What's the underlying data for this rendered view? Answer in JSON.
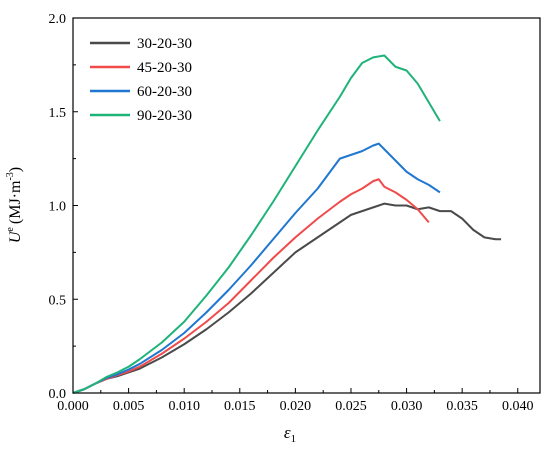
{
  "chart_data": {
    "type": "line",
    "xlabel": "ε",
    "xlabel_sub": "1",
    "ylabel": "U",
    "ylabel_sup": "e",
    "ylabel_unit": "(MJ·m",
    "ylabel_unit_sup": "-3",
    "ylabel_unit_end": ")",
    "xlim": [
      0.0,
      0.042
    ],
    "ylim": [
      0.0,
      2.0
    ],
    "xticks": [
      "0.000",
      "0.005",
      "0.010",
      "0.015",
      "0.020",
      "0.025",
      "0.030",
      "0.035",
      "0.040"
    ],
    "yticks": [
      "0.0",
      "0.5",
      "1.0",
      "1.5",
      "2.0"
    ],
    "legend_position": "top-left",
    "series": [
      {
        "name": "30-20-30",
        "color": "#4a4a4a",
        "points": [
          [
            0.0,
            0.0
          ],
          [
            0.001,
            0.02
          ],
          [
            0.002,
            0.05
          ],
          [
            0.003,
            0.075
          ],
          [
            0.004,
            0.09
          ],
          [
            0.005,
            0.11
          ],
          [
            0.006,
            0.13
          ],
          [
            0.008,
            0.19
          ],
          [
            0.01,
            0.26
          ],
          [
            0.012,
            0.34
          ],
          [
            0.014,
            0.43
          ],
          [
            0.016,
            0.53
          ],
          [
            0.018,
            0.64
          ],
          [
            0.02,
            0.75
          ],
          [
            0.022,
            0.83
          ],
          [
            0.024,
            0.91
          ],
          [
            0.025,
            0.95
          ],
          [
            0.026,
            0.97
          ],
          [
            0.027,
            0.99
          ],
          [
            0.028,
            1.01
          ],
          [
            0.029,
            1.0
          ],
          [
            0.03,
            1.0
          ],
          [
            0.031,
            0.98
          ],
          [
            0.032,
            0.99
          ],
          [
            0.033,
            0.97
          ],
          [
            0.034,
            0.97
          ],
          [
            0.035,
            0.93
          ],
          [
            0.036,
            0.87
          ],
          [
            0.037,
            0.83
          ],
          [
            0.038,
            0.82
          ],
          [
            0.0385,
            0.82
          ]
        ]
      },
      {
        "name": "45-20-30",
        "color": "#f04b4b",
        "points": [
          [
            0.0,
            0.0
          ],
          [
            0.001,
            0.02
          ],
          [
            0.002,
            0.05
          ],
          [
            0.003,
            0.075
          ],
          [
            0.004,
            0.095
          ],
          [
            0.005,
            0.115
          ],
          [
            0.006,
            0.14
          ],
          [
            0.008,
            0.21
          ],
          [
            0.01,
            0.29
          ],
          [
            0.012,
            0.38
          ],
          [
            0.014,
            0.48
          ],
          [
            0.016,
            0.6
          ],
          [
            0.018,
            0.72
          ],
          [
            0.02,
            0.83
          ],
          [
            0.022,
            0.93
          ],
          [
            0.024,
            1.02
          ],
          [
            0.025,
            1.06
          ],
          [
            0.026,
            1.09
          ],
          [
            0.027,
            1.13
          ],
          [
            0.0275,
            1.14
          ],
          [
            0.028,
            1.1
          ],
          [
            0.029,
            1.07
          ],
          [
            0.03,
            1.03
          ],
          [
            0.031,
            0.98
          ],
          [
            0.032,
            0.91
          ]
        ]
      },
      {
        "name": "60-20-30",
        "color": "#1f77d0",
        "points": [
          [
            0.0,
            0.0
          ],
          [
            0.001,
            0.02
          ],
          [
            0.002,
            0.05
          ],
          [
            0.003,
            0.08
          ],
          [
            0.004,
            0.1
          ],
          [
            0.005,
            0.125
          ],
          [
            0.006,
            0.155
          ],
          [
            0.008,
            0.23
          ],
          [
            0.01,
            0.32
          ],
          [
            0.012,
            0.43
          ],
          [
            0.014,
            0.55
          ],
          [
            0.016,
            0.68
          ],
          [
            0.018,
            0.82
          ],
          [
            0.02,
            0.96
          ],
          [
            0.022,
            1.09
          ],
          [
            0.023,
            1.17
          ],
          [
            0.024,
            1.25
          ],
          [
            0.025,
            1.27
          ],
          [
            0.026,
            1.29
          ],
          [
            0.027,
            1.32
          ],
          [
            0.0275,
            1.33
          ],
          [
            0.028,
            1.3
          ],
          [
            0.029,
            1.24
          ],
          [
            0.03,
            1.18
          ],
          [
            0.031,
            1.14
          ],
          [
            0.032,
            1.11
          ],
          [
            0.033,
            1.07
          ]
        ]
      },
      {
        "name": "90-20-30",
        "color": "#1fb37a",
        "points": [
          [
            0.0,
            0.0
          ],
          [
            0.001,
            0.02
          ],
          [
            0.002,
            0.05
          ],
          [
            0.003,
            0.085
          ],
          [
            0.004,
            0.11
          ],
          [
            0.005,
            0.14
          ],
          [
            0.006,
            0.18
          ],
          [
            0.008,
            0.27
          ],
          [
            0.01,
            0.38
          ],
          [
            0.012,
            0.52
          ],
          [
            0.014,
            0.67
          ],
          [
            0.016,
            0.84
          ],
          [
            0.018,
            1.02
          ],
          [
            0.02,
            1.21
          ],
          [
            0.022,
            1.4
          ],
          [
            0.024,
            1.58
          ],
          [
            0.025,
            1.68
          ],
          [
            0.026,
            1.76
          ],
          [
            0.027,
            1.79
          ],
          [
            0.028,
            1.8
          ],
          [
            0.029,
            1.74
          ],
          [
            0.03,
            1.72
          ],
          [
            0.031,
            1.65
          ],
          [
            0.032,
            1.55
          ],
          [
            0.033,
            1.45
          ]
        ]
      }
    ]
  }
}
